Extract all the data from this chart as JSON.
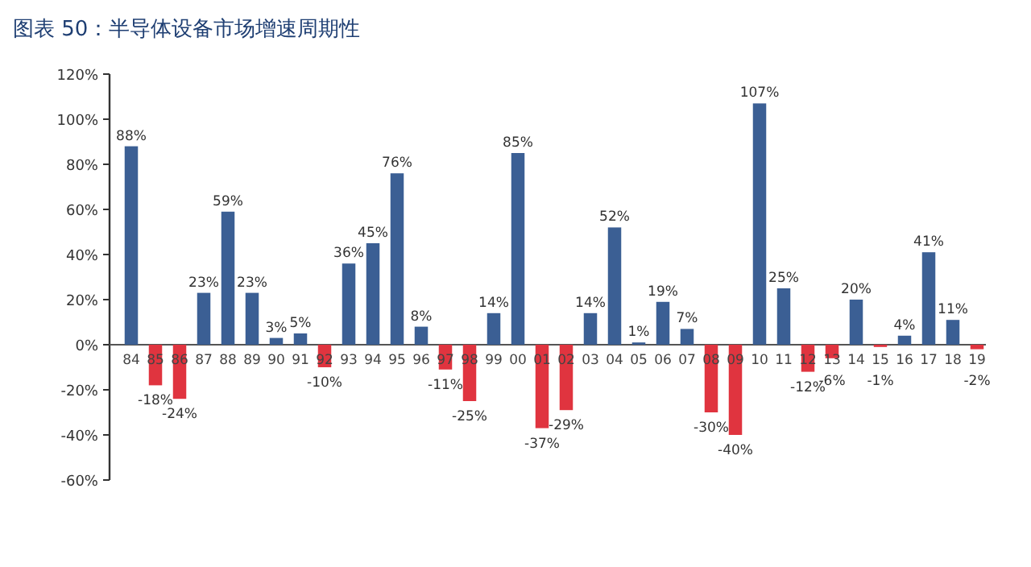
{
  "chart_data": {
    "type": "bar",
    "title": "图表 50：半导体设备市场增速周期性",
    "categories": [
      "84",
      "85",
      "86",
      "87",
      "88",
      "89",
      "90",
      "91",
      "92",
      "93",
      "94",
      "95",
      "96",
      "97",
      "98",
      "99",
      "00",
      "01",
      "02",
      "03",
      "04",
      "05",
      "06",
      "07",
      "08",
      "09",
      "10",
      "11",
      "12",
      "13",
      "14",
      "15",
      "16",
      "17",
      "18",
      "19"
    ],
    "values": [
      88,
      -18,
      -24,
      23,
      59,
      23,
      3,
      5,
      -10,
      36,
      45,
      76,
      8,
      -11,
      -25,
      14,
      85,
      -37,
      -29,
      14,
      52,
      1,
      19,
      7,
      -30,
      -40,
      107,
      25,
      -12,
      -6,
      20,
      -1,
      4,
      41,
      11,
      -2
    ],
    "value_labels": [
      "88%",
      "-18%",
      "-24%",
      "23%",
      "59%",
      "23%",
      "3%",
      "5%",
      "-10%",
      "36%",
      "45%",
      "76%",
      "8%",
      "-11%",
      "-25%",
      "14%",
      "85%",
      "-37%",
      "-29%",
      "14%",
      "52%",
      "1%",
      "19%",
      "7%",
      "-30%",
      "-40%",
      "107%",
      "25%",
      "-12%",
      "-6%",
      "20%",
      "-1%",
      "4%",
      "41%",
      "11%",
      "-2%"
    ],
    "colors": [
      "#3b5f94",
      "#e0343f",
      "#e0343f",
      "#3b5f94",
      "#3b5f94",
      "#3b5f94",
      "#3b5f94",
      "#3b5f94",
      "#e0343f",
      "#3b5f94",
      "#3b5f94",
      "#3b5f94",
      "#3b5f94",
      "#e0343f",
      "#e0343f",
      "#3b5f94",
      "#3b5f94",
      "#e0343f",
      "#e0343f",
      "#3b5f94",
      "#3b5f94",
      "#3b5f94",
      "#3b5f94",
      "#3b5f94",
      "#e0343f",
      "#e0343f",
      "#3b5f94",
      "#3b5f94",
      "#e0343f",
      "#e0343f",
      "#3b5f94",
      "#e0343f",
      "#3b5f94",
      "#3b5f94",
      "#3b5f94",
      "#e0343f"
    ],
    "ylim": [
      -60,
      120
    ],
    "yticks": [
      {
        "value": -60,
        "label": "-60%"
      },
      {
        "value": -40,
        "label": "-40%"
      },
      {
        "value": -20,
        "label": "-20%"
      },
      {
        "value": 0,
        "label": "0%"
      },
      {
        "value": 20,
        "label": "20%"
      },
      {
        "value": 40,
        "label": "40%"
      },
      {
        "value": 60,
        "label": "60%"
      },
      {
        "value": 80,
        "label": "80%"
      },
      {
        "value": 100,
        "label": "100%"
      },
      {
        "value": 120,
        "label": "120%"
      }
    ],
    "grid": false
  }
}
